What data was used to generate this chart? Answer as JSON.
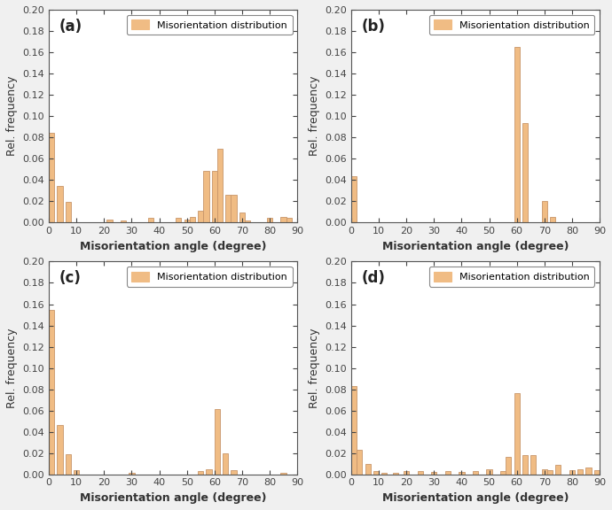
{
  "bar_color": "#F0BC84",
  "bar_edgecolor": "#C8966A",
  "fig_facecolor": "#F0F0F0",
  "ax_facecolor": "#FFFFFF",
  "ylabel": "Rel. frequency",
  "xlabel": "Misorientation angle (degree)",
  "legend_label": "Misorientation distribution",
  "ylim": [
    0,
    0.2
  ],
  "yticks": [
    0.0,
    0.02,
    0.04,
    0.06,
    0.08,
    0.1,
    0.12,
    0.14,
    0.16,
    0.18,
    0.2
  ],
  "xlim": [
    0,
    90
  ],
  "xticks": [
    0,
    10,
    20,
    30,
    40,
    50,
    60,
    70,
    80,
    90
  ],
  "subplots": [
    {
      "label": "(a)",
      "bin_centers": [
        1,
        4,
        7,
        22,
        27,
        37,
        47,
        50,
        52,
        55,
        57,
        60,
        62,
        65,
        67,
        70,
        72,
        80,
        85,
        87
      ],
      "values": [
        0.084,
        0.034,
        0.019,
        0.003,
        0.002,
        0.004,
        0.004,
        0.003,
        0.005,
        0.011,
        0.048,
        0.048,
        0.069,
        0.026,
        0.026,
        0.009,
        0.002,
        0.004,
        0.005,
        0.004
      ]
    },
    {
      "label": "(b)",
      "bin_centers": [
        1,
        60,
        63,
        70,
        73
      ],
      "values": [
        0.043,
        0.165,
        0.093,
        0.02,
        0.005
      ]
    },
    {
      "label": "(c)",
      "bin_centers": [
        1,
        4,
        7,
        10,
        30,
        55,
        58,
        61,
        64,
        67,
        85
      ],
      "values": [
        0.155,
        0.046,
        0.019,
        0.004,
        0.001,
        0.003,
        0.005,
        0.061,
        0.02,
        0.004,
        0.001
      ]
    },
    {
      "label": "(d)",
      "bin_centers": [
        1,
        3,
        6,
        9,
        12,
        16,
        20,
        25,
        30,
        35,
        40,
        45,
        50,
        55,
        57,
        60,
        63,
        66,
        70,
        72,
        75,
        80,
        83,
        86,
        89
      ],
      "values": [
        0.083,
        0.023,
        0.01,
        0.003,
        0.001,
        0.001,
        0.003,
        0.003,
        0.002,
        0.003,
        0.002,
        0.003,
        0.005,
        0.003,
        0.016,
        0.076,
        0.018,
        0.018,
        0.005,
        0.004,
        0.009,
        0.004,
        0.005,
        0.006,
        0.004
      ]
    }
  ]
}
